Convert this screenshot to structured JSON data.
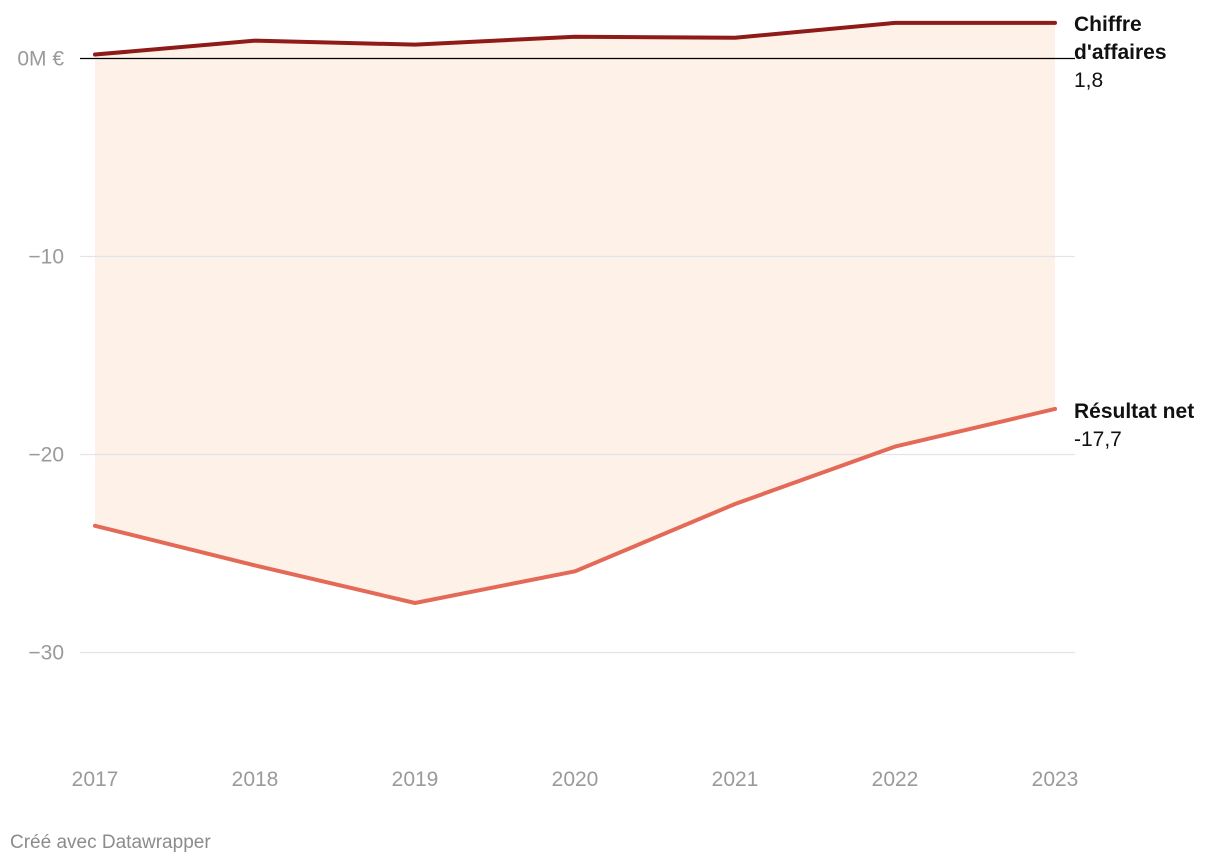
{
  "chart_data": {
    "type": "line",
    "x": [
      "2017",
      "2018",
      "2019",
      "2020",
      "2021",
      "2022",
      "2023"
    ],
    "series": [
      {
        "name": "Chiffre d'affaires",
        "label_lines": [
          "Chiffre",
          "d'affaires"
        ],
        "end_label": "1,8",
        "values": [
          0.2,
          0.9,
          0.7,
          1.1,
          1.05,
          1.8,
          1.8
        ],
        "color": "#8e1b17"
      },
      {
        "name": "Résultat net",
        "label_lines": [
          "Résultat net"
        ],
        "end_label": "-17,7",
        "values": [
          -23.6,
          -25.6,
          -27.5,
          -25.9,
          -22.5,
          -19.6,
          -17.7
        ],
        "color": "#e46a57"
      }
    ],
    "yticks": [
      {
        "value": 0,
        "label": "0M €"
      },
      {
        "value": -10,
        "label": "−10"
      },
      {
        "value": -20,
        "label": "−20"
      },
      {
        "value": -30,
        "label": "−30"
      }
    ],
    "ylim": [
      -35,
      2
    ],
    "fill_color": "#fdf1e8",
    "grid_color": "#e4e4e4",
    "zero_line_color": "#000000",
    "grid": true,
    "title": "",
    "xlabel": "",
    "ylabel": ""
  },
  "footer": {
    "credit": "Créé avec Datawrapper"
  }
}
